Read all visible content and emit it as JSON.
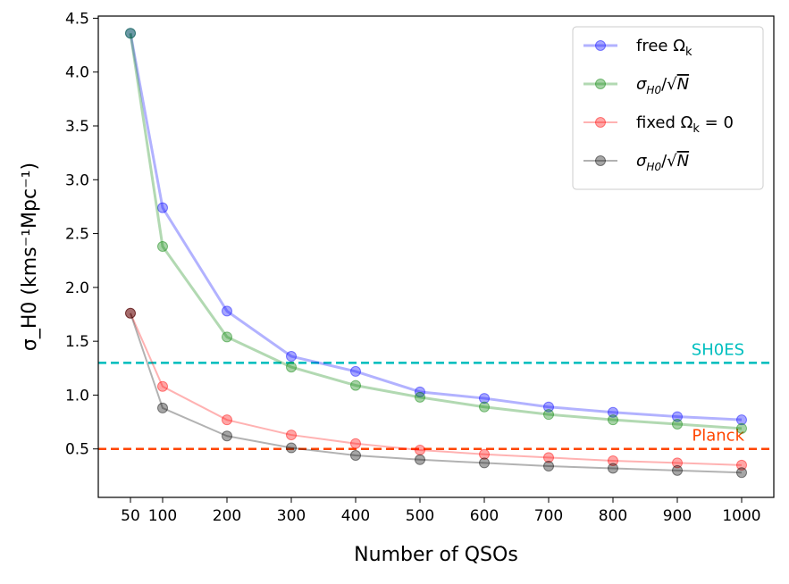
{
  "chart_data": {
    "type": "line",
    "xlabel": "Number of QSOs",
    "ylabel": "σ_H0 (kms⁻¹Mpc⁻¹)",
    "xlim": [
      0,
      1050
    ],
    "ylim": [
      0.05,
      4.52
    ],
    "x_ticks": [
      50,
      100,
      200,
      300,
      400,
      500,
      600,
      700,
      800,
      900,
      1000
    ],
    "x_tick_labels": [
      "50",
      "100",
      "200",
      "300",
      "400",
      "500",
      "600",
      "700",
      "800",
      "900",
      "1000"
    ],
    "y_ticks": [
      0.5,
      1.0,
      1.5,
      2.0,
      2.5,
      3.0,
      3.5,
      4.0,
      4.5
    ],
    "y_tick_labels": [
      "0.5",
      "1.0",
      "1.5",
      "2.0",
      "2.5",
      "3.0",
      "3.5",
      "4.0",
      "4.5"
    ],
    "legend_position": "top-right",
    "x": [
      50,
      100,
      200,
      300,
      400,
      500,
      600,
      700,
      800,
      900,
      1000
    ],
    "series": [
      {
        "name": "free Ω",
        "name_sub": "k",
        "legend_kind": "omega",
        "color": "#0000ff",
        "line_opacity": 0.3,
        "line_width": 3,
        "marker_opacity": 0.35,
        "values": [
          4.36,
          2.74,
          1.78,
          1.36,
          1.22,
          1.03,
          0.97,
          0.89,
          0.84,
          0.8,
          0.77
        ]
      },
      {
        "name": "σ",
        "name_sub": "H0",
        "legend_kind": "sigma",
        "color": "#008000",
        "line_opacity": 0.3,
        "line_width": 3,
        "marker_opacity": 0.35,
        "values": [
          4.36,
          2.38,
          1.54,
          1.26,
          1.09,
          0.98,
          0.89,
          0.82,
          0.77,
          0.73,
          0.69
        ]
      },
      {
        "name": "fixed Ω",
        "name_sub": "k",
        "name_suffix": " = 0",
        "legend_kind": "omega",
        "color": "#ff0000",
        "line_opacity": 0.3,
        "line_width": 2,
        "marker_opacity": 0.35,
        "values": [
          1.76,
          1.08,
          0.77,
          0.63,
          0.55,
          0.49,
          0.45,
          0.42,
          0.39,
          0.37,
          0.35
        ]
      },
      {
        "name": "σ",
        "name_sub": "H0",
        "legend_kind": "sigma",
        "color": "#000000",
        "line_opacity": 0.3,
        "line_width": 2,
        "marker_opacity": 0.35,
        "values": [
          1.76,
          0.88,
          0.62,
          0.51,
          0.44,
          0.4,
          0.37,
          0.34,
          0.32,
          0.3,
          0.28
        ]
      }
    ],
    "reference_lines": [
      {
        "label": "SH0ES",
        "y": 1.3,
        "color": "#00bfbf",
        "style": "dashed"
      },
      {
        "label": "Planck",
        "y": 0.5,
        "color": "#ff4500",
        "style": "dashed"
      }
    ]
  }
}
